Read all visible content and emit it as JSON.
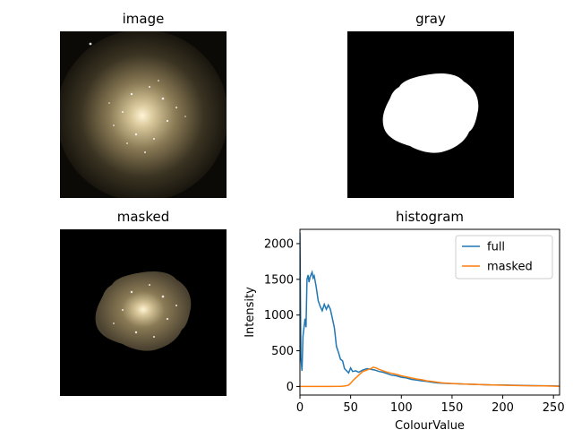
{
  "panels": {
    "image": {
      "title": "image"
    },
    "gray": {
      "title": "gray"
    },
    "masked": {
      "title": "masked"
    },
    "histogram": {
      "title": "histogram"
    }
  },
  "colors": {
    "full": "#1f77b4",
    "masked": "#ff7f0e"
  },
  "chart_data": {
    "type": "line",
    "title": "histogram",
    "xlabel": "ColourValue",
    "ylabel": "Intensity",
    "xlim": [
      0,
      256
    ],
    "ylim": [
      -120,
      2200
    ],
    "xticks": [
      0,
      50,
      100,
      150,
      200,
      250
    ],
    "yticks": [
      0,
      500,
      1000,
      1500,
      2000
    ],
    "legend": "top-right",
    "series": [
      {
        "name": "full",
        "x": [
          0,
          1,
          2,
          3,
          5,
          6,
          7,
          8,
          9,
          10,
          12,
          13,
          14,
          16,
          18,
          20,
          22,
          24,
          26,
          28,
          30,
          32,
          34,
          36,
          38,
          40,
          42,
          44,
          46,
          48,
          50,
          52,
          55,
          58,
          62,
          66,
          70,
          74,
          78,
          82,
          86,
          90,
          95,
          100,
          105,
          110,
          115,
          120,
          125,
          130,
          135,
          140,
          150,
          160,
          170,
          180,
          190,
          200,
          210,
          220,
          230,
          240,
          250,
          256
        ],
        "y": [
          2150,
          400,
          220,
          700,
          950,
          830,
          1500,
          1560,
          1460,
          1530,
          1600,
          1520,
          1550,
          1400,
          1200,
          1120,
          1060,
          1150,
          1080,
          1140,
          1080,
          950,
          820,
          560,
          480,
          380,
          360,
          250,
          220,
          190,
          260,
          210,
          220,
          200,
          230,
          250,
          240,
          230,
          210,
          200,
          180,
          160,
          150,
          130,
          120,
          100,
          90,
          80,
          70,
          60,
          50,
          45,
          40,
          35,
          30,
          25,
          22,
          20,
          18,
          15,
          12,
          10,
          8,
          5
        ]
      },
      {
        "name": "masked",
        "x": [
          0,
          10,
          20,
          30,
          40,
          45,
          48,
          50,
          52,
          55,
          58,
          62,
          66,
          70,
          72,
          75,
          78,
          82,
          86,
          90,
          95,
          100,
          105,
          110,
          115,
          120,
          125,
          130,
          135,
          140,
          150,
          160,
          170,
          180,
          190,
          200,
          210,
          220,
          230,
          240,
          250,
          256
        ],
        "y": [
          0,
          0,
          0,
          0,
          2,
          8,
          20,
          45,
          80,
          120,
          160,
          210,
          230,
          250,
          270,
          260,
          240,
          220,
          200,
          185,
          170,
          150,
          135,
          120,
          105,
          95,
          80,
          70,
          60,
          50,
          42,
          36,
          30,
          25,
          22,
          18,
          15,
          12,
          10,
          8,
          6,
          3
        ]
      }
    ]
  }
}
